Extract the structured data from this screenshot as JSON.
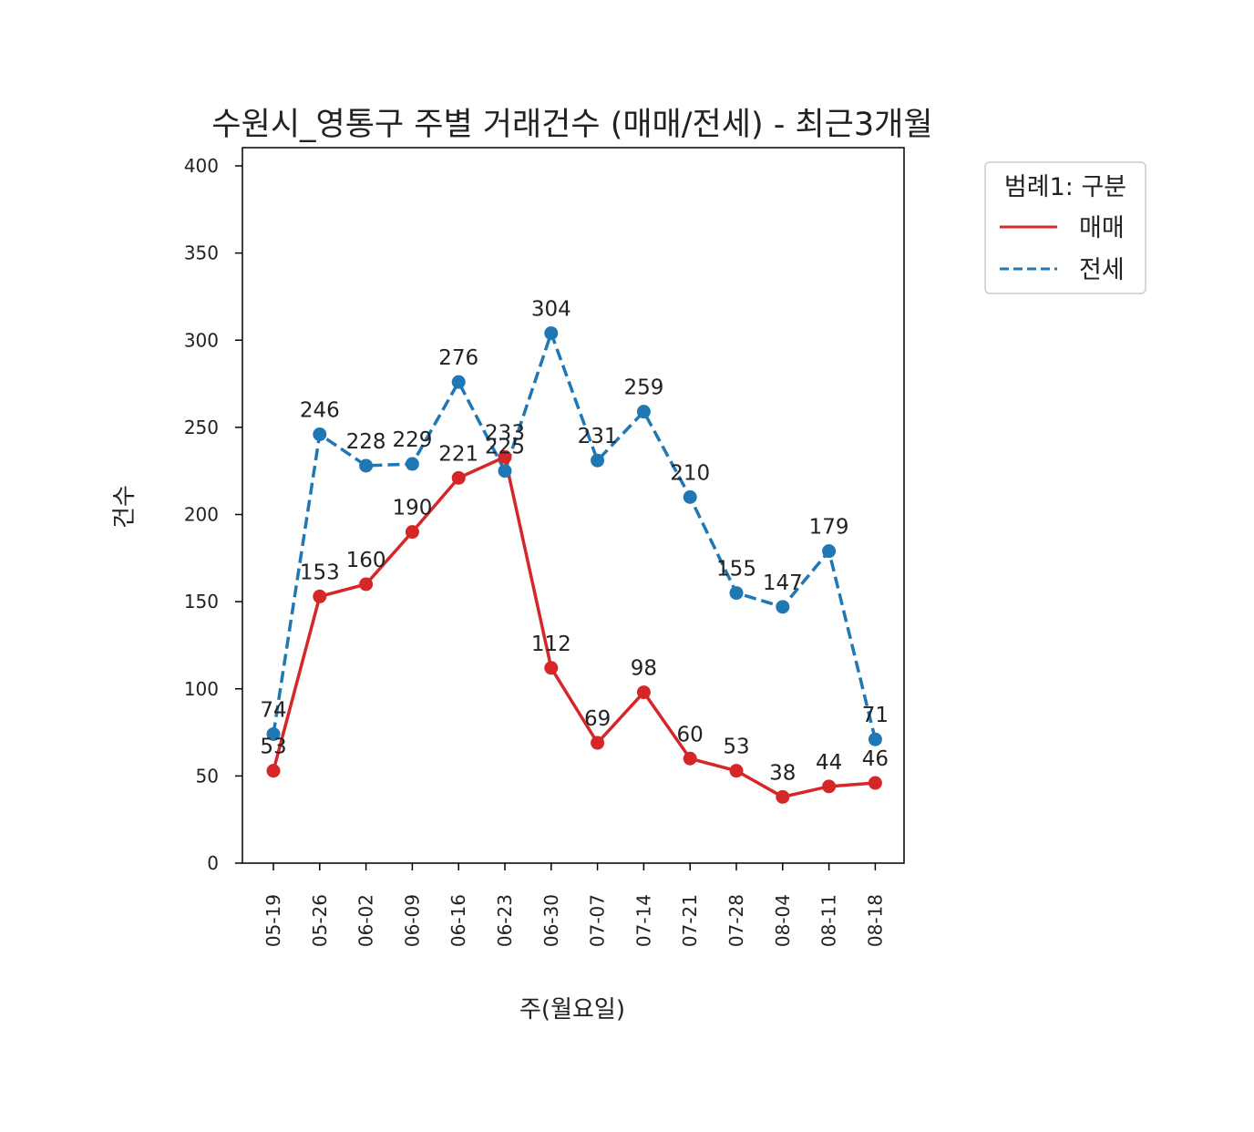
{
  "chart_data": {
    "type": "line",
    "title": "수원시_영통구 주별 거래건수 (매매/전세) - 최근3개월",
    "xlabel": "주(월요일)",
    "ylabel": "건수",
    "ylim": [
      0,
      400
    ],
    "yticks": [
      0,
      50,
      100,
      150,
      200,
      250,
      300,
      350,
      400
    ],
    "categories": [
      "05-19",
      "05-26",
      "06-02",
      "06-09",
      "06-16",
      "06-23",
      "06-30",
      "07-07",
      "07-14",
      "07-21",
      "07-28",
      "08-04",
      "08-11",
      "08-18"
    ],
    "legend_title": "범례1: 구분",
    "legend_position": "outside-top-right",
    "grid": false,
    "series": [
      {
        "name": "매매",
        "color": "#d62728",
        "dash": "solid",
        "values": [
          53,
          153,
          160,
          190,
          221,
          233,
          112,
          69,
          98,
          60,
          53,
          38,
          44,
          46
        ]
      },
      {
        "name": "전세",
        "color": "#1f77b4",
        "dash": "dashed",
        "values": [
          74,
          246,
          228,
          229,
          276,
          225,
          304,
          231,
          259,
          210,
          155,
          147,
          179,
          71
        ]
      }
    ]
  }
}
